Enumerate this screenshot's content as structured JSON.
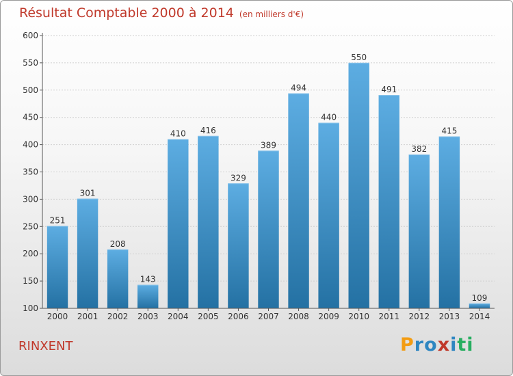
{
  "header": {
    "title": "Résultat Comptable 2000 à 2014",
    "subtitle": "(en milliers d'€)"
  },
  "footer": {
    "place": "RINXENT",
    "logo_text": "Proxiti",
    "logo_colors": [
      "#f39c12",
      "#2e86c1",
      "#2e86c1",
      "#c0392b",
      "#2e86c1",
      "#27ae60",
      "#27ae60"
    ]
  },
  "chart_data": {
    "type": "bar",
    "title": "Résultat Comptable 2000 à 2014",
    "subtitle": "(en milliers d'€)",
    "xlabel": "",
    "ylabel": "",
    "categories": [
      "2000",
      "2001",
      "2002",
      "2003",
      "2004",
      "2005",
      "2006",
      "2007",
      "2008",
      "2009",
      "2010",
      "2011",
      "2012",
      "2013",
      "2014"
    ],
    "values": [
      251,
      301,
      208,
      143,
      410,
      416,
      329,
      389,
      494,
      440,
      550,
      491,
      382,
      415,
      109
    ],
    "ylim": [
      100,
      600
    ],
    "yticks": [
      100,
      150,
      200,
      250,
      300,
      350,
      400,
      450,
      500,
      550,
      600
    ],
    "grid": true,
    "bar_color_top": "#5dade2",
    "bar_color_bottom": "#2471a3"
  }
}
